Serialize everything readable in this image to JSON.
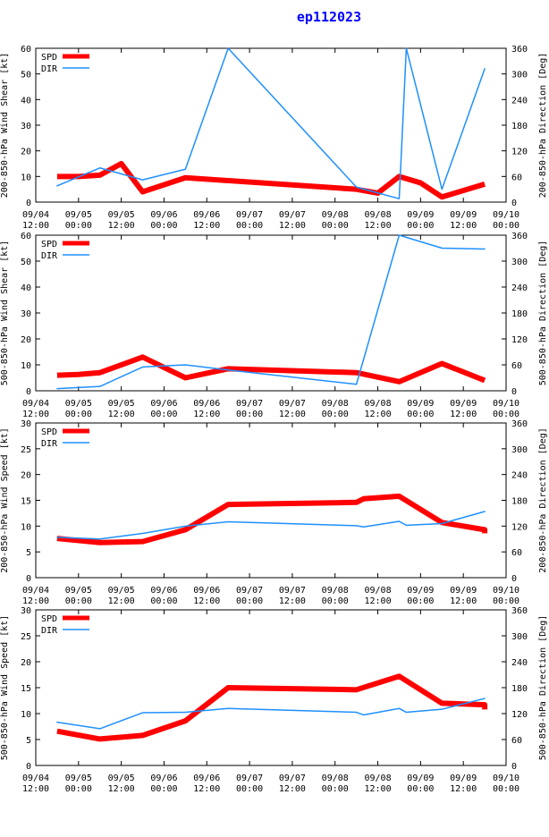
{
  "title": "ep112023",
  "colors": {
    "spd": "#ff0000",
    "dir": "#1e90ff",
    "axis": "#000000",
    "title": "#0000ff"
  },
  "x_tick_labels": [
    [
      "09/04",
      "12:00"
    ],
    [
      "09/05",
      "00:00"
    ],
    [
      "09/05",
      "12:00"
    ],
    [
      "09/06",
      "00:00"
    ],
    [
      "09/06",
      "12:00"
    ],
    [
      "09/07",
      "00:00"
    ],
    [
      "09/07",
      "12:00"
    ],
    [
      "09/08",
      "00:00"
    ],
    [
      "09/08",
      "12:00"
    ],
    [
      "09/09",
      "00:00"
    ],
    [
      "09/09",
      "12:00"
    ],
    [
      "09/10",
      "00:00"
    ]
  ],
  "chart_data": [
    {
      "type": "line",
      "ylabel": "200-850-hPa Wind Shear [kt]",
      "y2label": "200-850-hPa Direction [Deg]",
      "ylim": [
        0,
        60
      ],
      "yticks": [
        0,
        10,
        20,
        30,
        40,
        50,
        60
      ],
      "y2lim": [
        0,
        360
      ],
      "y2ticks": [
        0,
        60,
        120,
        180,
        240,
        300,
        360
      ],
      "xlim": [
        0,
        132
      ],
      "legend": [
        "SPD",
        "DIR"
      ],
      "series": [
        {
          "name": "SPD",
          "axis": "left",
          "x": [
            6,
            12,
            18,
            24,
            30,
            42,
            90,
            96,
            102,
            108,
            114,
            126
          ],
          "y": [
            10,
            10,
            10.5,
            15,
            4,
            9.5,
            5,
            3.5,
            10,
            7.5,
            2,
            7
          ]
        },
        {
          "name": "DIR",
          "axis": "right",
          "x": [
            6,
            18,
            30,
            42,
            54,
            90,
            102,
            104,
            114,
            126
          ],
          "y": [
            38,
            80,
            52,
            77,
            360,
            35,
            8,
            360,
            30,
            312
          ]
        }
      ]
    },
    {
      "type": "line",
      "ylabel": "500-850-hPa Wind Shear [kt]",
      "y2label": "500-850-hPa Direction [Deg]",
      "ylim": [
        0,
        60
      ],
      "yticks": [
        0,
        10,
        20,
        30,
        40,
        50,
        60
      ],
      "y2lim": [
        0,
        360
      ],
      "y2ticks": [
        0,
        60,
        120,
        180,
        240,
        300,
        360
      ],
      "xlim": [
        0,
        132
      ],
      "legend": [
        "SPD",
        "DIR"
      ],
      "series": [
        {
          "name": "SPD",
          "axis": "left",
          "x": [
            6,
            12,
            18,
            30,
            42,
            54,
            90,
            102,
            114,
            126
          ],
          "y": [
            6,
            6.3,
            7,
            13,
            5,
            8.5,
            7,
            3.5,
            10.5,
            4
          ]
        },
        {
          "name": "DIR",
          "axis": "right",
          "x": [
            6,
            18,
            30,
            42,
            54,
            90,
            102,
            114,
            126
          ],
          "y": [
            5,
            10,
            55,
            60,
            48,
            15,
            360,
            330,
            328
          ]
        }
      ]
    },
    {
      "type": "line",
      "ylabel": "200-850-hPa Wind Speed [kt]",
      "y2label": "200-850-hPa Direction [Deg]",
      "ylim": [
        0,
        30
      ],
      "yticks": [
        0,
        5,
        10,
        15,
        20,
        25,
        30
      ],
      "y2lim": [
        0,
        360
      ],
      "y2ticks": [
        0,
        60,
        120,
        180,
        240,
        300,
        360
      ],
      "xlim": [
        0,
        132
      ],
      "legend": [
        "SPD",
        "DIR"
      ],
      "series": [
        {
          "name": "SPD",
          "axis": "left",
          "x": [
            6,
            18,
            30,
            42,
            54,
            90,
            92,
            102,
            114,
            126,
            126
          ],
          "y": [
            7.6,
            6.8,
            7,
            9.3,
            14.2,
            14.6,
            15.3,
            15.8,
            10.7,
            9.3,
            8.6
          ]
        },
        {
          "name": "DIR",
          "axis": "right",
          "x": [
            6,
            18,
            30,
            42,
            54,
            90,
            92,
            102,
            104,
            114,
            126
          ],
          "y": [
            94,
            90,
            103,
            120,
            130,
            121,
            118,
            131,
            122,
            126,
            154
          ]
        }
      ]
    },
    {
      "type": "line",
      "ylabel": "500-850-hPa Wind Speed [kt]",
      "y2label": "500-850-hPa Direction [Deg]",
      "ylim": [
        0,
        30
      ],
      "yticks": [
        0,
        5,
        10,
        15,
        20,
        25,
        30
      ],
      "y2lim": [
        0,
        360
      ],
      "y2ticks": [
        0,
        60,
        120,
        180,
        240,
        300,
        360
      ],
      "xlim": [
        0,
        132
      ],
      "legend": [
        "SPD",
        "DIR"
      ],
      "series": [
        {
          "name": "SPD",
          "axis": "left",
          "x": [
            6,
            18,
            30,
            42,
            54,
            90,
            102,
            114,
            126,
            126
          ],
          "y": [
            6.6,
            5.1,
            5.8,
            8.6,
            15,
            14.6,
            17.2,
            12,
            11.7,
            10.8
          ]
        },
        {
          "name": "DIR",
          "axis": "right",
          "x": [
            6,
            18,
            30,
            42,
            54,
            90,
            92,
            102,
            104,
            114,
            126
          ],
          "y": [
            100,
            85,
            122,
            123,
            132,
            123,
            117,
            132,
            123,
            130,
            155
          ]
        }
      ]
    }
  ]
}
